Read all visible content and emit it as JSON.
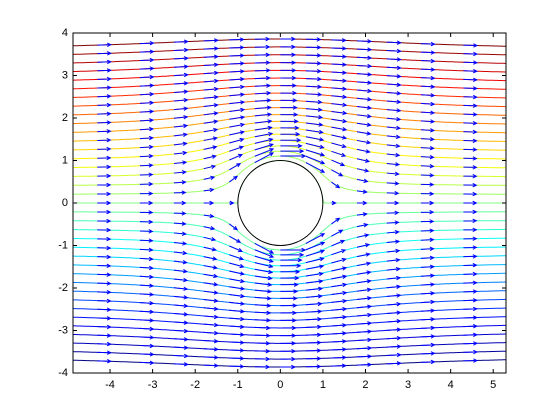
{
  "chart_data": {
    "type": "contour",
    "xlim": [
      -4.87,
      5.3
    ],
    "ylim": [
      -4,
      4
    ],
    "xticks": [
      -4,
      -3,
      -2,
      -1,
      0,
      1,
      2,
      3,
      4,
      5
    ],
    "yticks": [
      -4,
      -3,
      -2,
      -1,
      0,
      1,
      2,
      3,
      4
    ],
    "levels": [
      -3.6,
      -3.4,
      -3.2,
      -3.0,
      -2.8,
      -2.6,
      -2.4,
      -2.2,
      -2.0,
      -1.8,
      -1.6,
      -1.4,
      -1.2,
      -1.0,
      -0.8,
      -0.6,
      -0.4,
      -0.2,
      0,
      0.2,
      0.4,
      0.6,
      0.8,
      1.0,
      1.2,
      1.4,
      1.6,
      1.8,
      2.0,
      2.2,
      2.4,
      2.6,
      2.8,
      3.0,
      3.2,
      3.4,
      3.6
    ],
    "colormap": "jet",
    "arrow_color": "#0000ff",
    "arrow_x": [
      -4.3,
      -3.3,
      -2.5,
      -1.8,
      -1.2,
      -0.6,
      0,
      0.6,
      1.2,
      1.8,
      2.5,
      3.3,
      4.3
    ]
  }
}
